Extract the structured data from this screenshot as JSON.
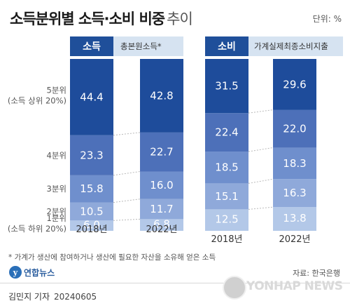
{
  "title": {
    "main": "소득분위별 소득·소비 비중",
    "sub": "추이"
  },
  "unit": "단위: %",
  "panels": [
    {
      "tag": "소득",
      "note": "총본원소득*"
    },
    {
      "tag": "소비",
      "note": "가계실제최종소비지출"
    }
  ],
  "row_labels": [
    {
      "text": "5분위",
      "sub": "(소득 상위 20%)"
    },
    {
      "text": "4분위",
      "sub": ""
    },
    {
      "text": "3분위",
      "sub": ""
    },
    {
      "text": "2분위",
      "sub": ""
    },
    {
      "text": "1분위",
      "sub": "(소득 하위 20%)"
    }
  ],
  "chart_data": [
    {
      "type": "bar",
      "stacked": true,
      "title": "소득",
      "note": "총본원소득*",
      "categories": [
        "2018년",
        "2022년"
      ],
      "series": [
        {
          "name": "1분위",
          "values": [
            6.0,
            6.8
          ]
        },
        {
          "name": "2분위",
          "values": [
            10.5,
            11.7
          ]
        },
        {
          "name": "3분위",
          "values": [
            15.8,
            16.0
          ]
        },
        {
          "name": "4분위",
          "values": [
            23.3,
            22.7
          ]
        },
        {
          "name": "5분위",
          "values": [
            44.4,
            42.8
          ]
        }
      ],
      "ylim": [
        0,
        100
      ]
    },
    {
      "type": "bar",
      "stacked": true,
      "title": "소비",
      "note": "가계실제최종소비지출",
      "categories": [
        "2018년",
        "2022년"
      ],
      "series": [
        {
          "name": "1분위",
          "values": [
            12.5,
            13.8
          ]
        },
        {
          "name": "2분위",
          "values": [
            15.1,
            16.3
          ]
        },
        {
          "name": "3분위",
          "values": [
            18.5,
            18.3
          ]
        },
        {
          "name": "4분위",
          "values": [
            22.4,
            22.0
          ]
        },
        {
          "name": "5분위",
          "values": [
            31.5,
            29.6
          ]
        }
      ],
      "ylim": [
        0,
        100
      ]
    }
  ],
  "colors": [
    "#b3c8e8",
    "#8fa9da",
    "#6f8fcd",
    "#4d70b9",
    "#1e4c9b"
  ],
  "footnote": "* 가계가 생산에 참여하거나 생산에 필요한 자산을 소유해 얻은 소득",
  "source": "자료: 한국은행",
  "logo": {
    "mark": "y",
    "text": "연합뉴스"
  },
  "reporter": {
    "name": "김민지 기자",
    "date": "20240605"
  },
  "watermark": "YONHAP NEWS"
}
